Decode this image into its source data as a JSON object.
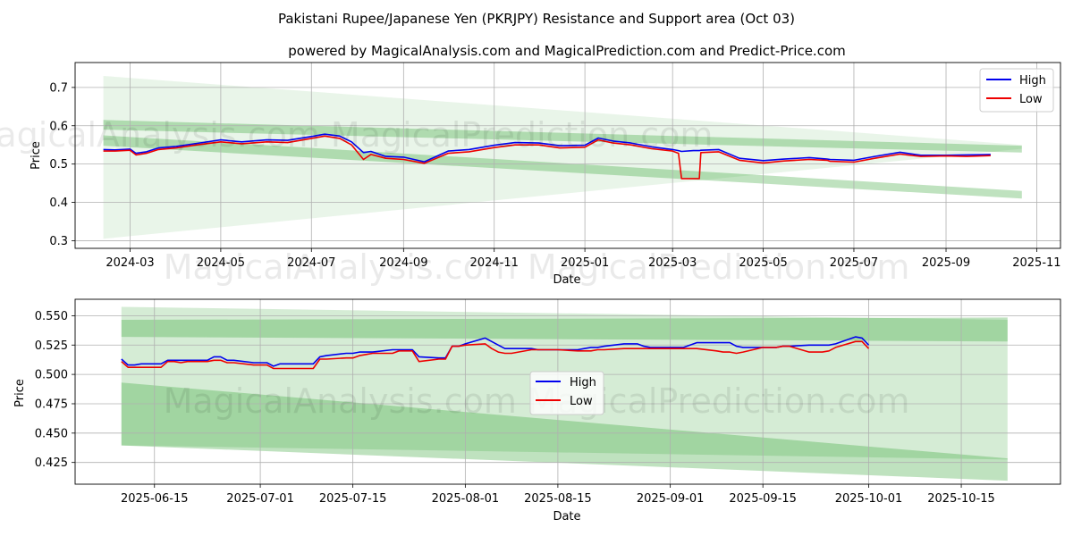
{
  "chart_data": [
    {
      "type": "line",
      "title": "Pakistani Rupee/Japanese Yen (PKRJPY) Resistance and Support area (Oct 03)",
      "subtitle": "powered by MagicalAnalysis.com and MagicalPrediction.com and Predict-Price.com",
      "xlabel": "Date",
      "ylabel": "Price",
      "xlim": [
        "2024-01-24",
        "2025-11-17"
      ],
      "ylim": [
        0.28,
        0.765
      ],
      "grid": true,
      "legend": "top-right",
      "x_ticks": [
        "2024-03",
        "2024-05",
        "2024-07",
        "2024-09",
        "2024-11",
        "2025-01",
        "2025-03",
        "2025-05",
        "2025-07",
        "2025-09",
        "2025-11"
      ],
      "y_ticks": [
        0.3,
        0.4,
        0.5,
        0.6,
        0.7
      ],
      "y_tick_labels": [
        "0.3",
        "0.4",
        "0.5",
        "0.6",
        "0.7"
      ],
      "bands": [
        {
          "name": "wide band",
          "opacity": 0.1,
          "start": "2024-02-12",
          "end": "2025-10-22",
          "upper": [
            0.73,
            0.55
          ],
          "lower": [
            0.305,
            0.54
          ]
        },
        {
          "name": "resistance band",
          "opacity": 0.3,
          "start": "2024-02-12",
          "end": "2025-10-22",
          "upper": [
            0.615,
            0.548
          ],
          "lower": [
            0.59,
            0.53
          ]
        },
        {
          "name": "support band",
          "opacity": 0.3,
          "start": "2024-02-12",
          "end": "2025-10-22",
          "upper": [
            0.575,
            0.43
          ],
          "lower": [
            0.548,
            0.41
          ]
        }
      ],
      "x": [
        "2024-02-12",
        "2024-02-20",
        "2024-03-01",
        "2024-03-05",
        "2024-03-12",
        "2024-03-20",
        "2024-04-01",
        "2024-04-15",
        "2024-05-01",
        "2024-05-15",
        "2024-06-01",
        "2024-06-15",
        "2024-07-01",
        "2024-07-10",
        "2024-07-20",
        "2024-07-28",
        "2024-08-05",
        "2024-08-10",
        "2024-08-20",
        "2024-09-01",
        "2024-09-15",
        "2024-10-01",
        "2024-10-15",
        "2024-11-01",
        "2024-11-15",
        "2024-12-01",
        "2024-12-15",
        "2025-01-01",
        "2025-01-10",
        "2025-01-20",
        "2025-02-01",
        "2025-02-15",
        "2025-03-01",
        "2025-03-05",
        "2025-03-07",
        "2025-03-15",
        "2025-03-19",
        "2025-03-20",
        "2025-04-01",
        "2025-04-15",
        "2025-05-01",
        "2025-05-15",
        "2025-06-01",
        "2025-06-13",
        "2025-06-15",
        "2025-07-01",
        "2025-07-15",
        "2025-08-01",
        "2025-08-15",
        "2025-09-01",
        "2025-09-15",
        "2025-10-01"
      ],
      "series": [
        {
          "name": "High",
          "color": "#0000ee",
          "values": [
            0.538,
            0.537,
            0.539,
            0.528,
            0.532,
            0.542,
            0.546,
            0.554,
            0.563,
            0.558,
            0.563,
            0.562,
            0.572,
            0.578,
            0.573,
            0.558,
            0.53,
            0.533,
            0.52,
            0.518,
            0.506,
            0.534,
            0.538,
            0.549,
            0.556,
            0.555,
            0.548,
            0.549,
            0.568,
            0.56,
            0.555,
            0.545,
            0.538,
            0.535,
            0.533,
            0.535,
            0.535,
            0.536,
            0.538,
            0.515,
            0.509,
            0.513,
            0.517,
            0.513,
            0.512,
            0.51,
            0.52,
            0.531,
            0.523,
            0.523,
            0.524,
            0.525
          ]
        },
        {
          "name": "Low",
          "color": "#ee0000",
          "values": [
            0.534,
            0.534,
            0.536,
            0.524,
            0.528,
            0.538,
            0.542,
            0.55,
            0.558,
            0.553,
            0.558,
            0.556,
            0.567,
            0.573,
            0.567,
            0.55,
            0.512,
            0.525,
            0.515,
            0.512,
            0.502,
            0.528,
            0.532,
            0.543,
            0.55,
            0.55,
            0.542,
            0.544,
            0.563,
            0.555,
            0.55,
            0.54,
            0.534,
            0.528,
            0.462,
            0.462,
            0.462,
            0.53,
            0.532,
            0.51,
            0.503,
            0.508,
            0.512,
            0.51,
            0.507,
            0.505,
            0.515,
            0.526,
            0.52,
            0.521,
            0.52,
            0.522
          ]
        }
      ]
    },
    {
      "type": "line",
      "xlabel": "Date",
      "ylabel": "Price",
      "xlim": [
        "2025-06-03",
        "2025-10-30"
      ],
      "ylim": [
        0.4065,
        0.564
      ],
      "grid": true,
      "legend": "center",
      "x_ticks": [
        "2025-06-15",
        "2025-07-01",
        "2025-07-15",
        "2025-08-01",
        "2025-08-15",
        "2025-09-01",
        "2025-09-15",
        "2025-10-01",
        "2025-10-15"
      ],
      "y_ticks": [
        0.425,
        0.45,
        0.475,
        0.5,
        0.525,
        0.55
      ],
      "y_tick_labels": [
        "0.425",
        "0.450",
        "0.475",
        "0.500",
        "0.525",
        "0.550"
      ],
      "bands": [
        {
          "name": "wide band",
          "opacity": 0.2,
          "start": "2025-06-10",
          "end": "2025-10-22",
          "upper": [
            0.5575,
            0.5465
          ],
          "lower": [
            0.4395,
            0.4275
          ]
        },
        {
          "name": "resistance band",
          "opacity": 0.3,
          "start": "2025-06-10",
          "end": "2025-10-22",
          "upper": [
            0.5465,
            0.5485
          ],
          "lower": [
            0.532,
            0.528
          ]
        },
        {
          "name": "support band",
          "opacity": 0.3,
          "start": "2025-06-10",
          "end": "2025-10-22",
          "upper": [
            0.493,
            0.4285
          ],
          "lower": [
            0.4395,
            0.4095
          ]
        }
      ],
      "x": [
        "2025-06-10",
        "2025-06-11",
        "2025-06-12",
        "2025-06-13",
        "2025-06-16",
        "2025-06-17",
        "2025-06-18",
        "2025-06-19",
        "2025-06-20",
        "2025-06-23",
        "2025-06-24",
        "2025-06-25",
        "2025-06-26",
        "2025-06-27",
        "2025-06-30",
        "2025-07-01",
        "2025-07-02",
        "2025-07-03",
        "2025-07-04",
        "2025-07-07",
        "2025-07-08",
        "2025-07-09",
        "2025-07-10",
        "2025-07-11",
        "2025-07-14",
        "2025-07-15",
        "2025-07-16",
        "2025-07-17",
        "2025-07-18",
        "2025-07-21",
        "2025-07-22",
        "2025-07-23",
        "2025-07-24",
        "2025-07-25",
        "2025-07-28",
        "2025-07-29",
        "2025-07-30",
        "2025-07-31",
        "2025-08-01",
        "2025-08-04",
        "2025-08-05",
        "2025-08-06",
        "2025-08-07",
        "2025-08-08",
        "2025-08-11",
        "2025-08-12",
        "2025-08-13",
        "2025-08-14",
        "2025-08-15",
        "2025-08-18",
        "2025-08-19",
        "2025-08-20",
        "2025-08-21",
        "2025-08-22",
        "2025-08-25",
        "2025-08-26",
        "2025-08-27",
        "2025-08-28",
        "2025-08-29",
        "2025-09-01",
        "2025-09-02",
        "2025-09-03",
        "2025-09-04",
        "2025-09-05",
        "2025-09-08",
        "2025-09-09",
        "2025-09-10",
        "2025-09-11",
        "2025-09-12",
        "2025-09-15",
        "2025-09-16",
        "2025-09-17",
        "2025-09-18",
        "2025-09-19",
        "2025-09-22",
        "2025-09-23",
        "2025-09-24",
        "2025-09-25",
        "2025-09-26",
        "2025-09-29",
        "2025-09-30",
        "2025-10-01"
      ],
      "series": [
        {
          "name": "High",
          "color": "#0000ee",
          "values": [
            0.513,
            0.508,
            0.508,
            0.509,
            0.509,
            0.512,
            0.512,
            0.512,
            0.512,
            0.512,
            0.515,
            0.515,
            0.512,
            0.512,
            0.51,
            0.51,
            0.51,
            0.507,
            0.509,
            0.509,
            0.509,
            0.509,
            0.515,
            0.516,
            0.518,
            0.518,
            0.519,
            0.519,
            0.519,
            0.521,
            0.521,
            0.521,
            0.521,
            0.515,
            0.514,
            0.514,
            0.524,
            0.524,
            0.526,
            0.531,
            0.528,
            0.525,
            0.522,
            0.522,
            0.522,
            0.521,
            0.521,
            0.521,
            0.521,
            0.521,
            0.522,
            0.523,
            0.523,
            0.524,
            0.526,
            0.526,
            0.526,
            0.524,
            0.523,
            0.523,
            0.523,
            0.523,
            0.525,
            0.527,
            0.527,
            0.527,
            0.527,
            0.524,
            0.523,
            0.523,
            0.523,
            0.523,
            0.524,
            0.524,
            0.525,
            0.525,
            0.525,
            0.525,
            0.526,
            0.532,
            0.531,
            0.525
          ]
        },
        {
          "name": "Low",
          "color": "#ee0000",
          "values": [
            0.511,
            0.506,
            0.506,
            0.506,
            0.506,
            0.511,
            0.511,
            0.51,
            0.511,
            0.511,
            0.512,
            0.512,
            0.51,
            0.51,
            0.508,
            0.508,
            0.508,
            0.505,
            0.505,
            0.505,
            0.505,
            0.505,
            0.513,
            0.513,
            0.514,
            0.514,
            0.516,
            0.517,
            0.518,
            0.518,
            0.52,
            0.52,
            0.52,
            0.511,
            0.513,
            0.513,
            0.524,
            0.524,
            0.525,
            0.526,
            0.522,
            0.519,
            0.518,
            0.518,
            0.521,
            0.521,
            0.521,
            0.521,
            0.521,
            0.52,
            0.52,
            0.52,
            0.521,
            0.521,
            0.522,
            0.522,
            0.522,
            0.522,
            0.522,
            0.522,
            0.522,
            0.522,
            0.522,
            0.522,
            0.52,
            0.519,
            0.519,
            0.518,
            0.519,
            0.523,
            0.523,
            0.523,
            0.524,
            0.524,
            0.519,
            0.519,
            0.519,
            0.52,
            0.523,
            0.528,
            0.528,
            0.522
          ]
        }
      ]
    }
  ],
  "watermark": "MagicalAnalysis.com   MagicalPrediction.com"
}
